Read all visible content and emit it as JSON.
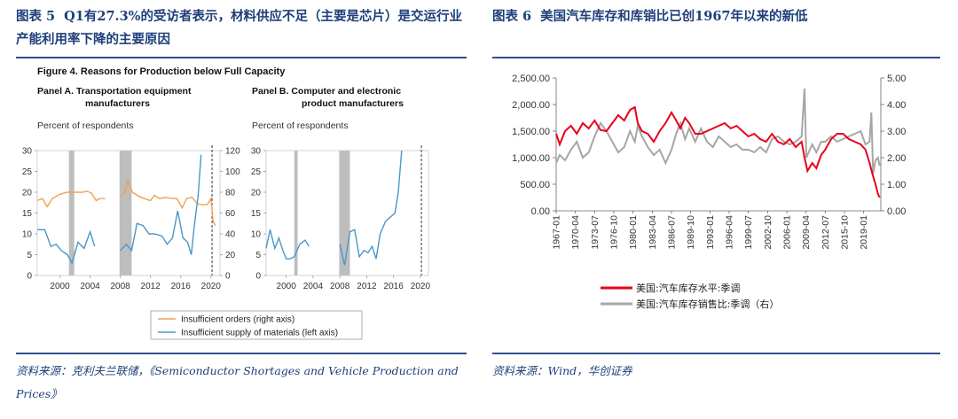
{
  "left": {
    "caption_tag": "图表 5",
    "caption": "Q1有27.3%的受访者表示，材料供应不足（主要是芯片）是交运行业产能利用率下降的主要原因",
    "source": "资料来源：克利夫兰联储，《Semiconductor Shortages and Vehicle Production and Prices》",
    "figure_title": "Figure 4.   Reasons for Production below Full Capacity",
    "panel_a_title": [
      "Panel A.  Transportation equipment",
      "manufacturers"
    ],
    "panel_b_title": [
      "Panel B.  Computer and electronic",
      "product manufacturers"
    ],
    "percent_label": "Percent of respondents",
    "legend": [
      "Insufficient orders (right axis)",
      "Insufficient supply of materials (left axis)"
    ],
    "colors": {
      "orders": "#f0a055",
      "supply": "#4a97c8",
      "recession": "#bdbdbd"
    }
  },
  "right": {
    "caption_tag": "图表 6",
    "caption": "美国汽车库存和库销比已创1967年以来的新低",
    "source": "资料来源：Wind，华创证券",
    "legend": [
      "美国:汽车库存水平:季调",
      "美国:汽车库存销售比:季调（右）"
    ],
    "colors": {
      "inventory": "#e8001c",
      "ratio": "#a6a6a6"
    }
  },
  "chart_data": [
    {
      "type": "line",
      "panel": "Panel A. Transportation equipment manufacturers",
      "ylabel": "Percent of respondents",
      "x_ticks": [
        "2000",
        "2004",
        "2008",
        "2012",
        "2016",
        "2020"
      ],
      "left_ylim": [
        0,
        30
      ],
      "left_ticks": [
        0,
        5,
        10,
        15,
        20,
        25,
        30
      ],
      "right_ylim": [
        0,
        120
      ],
      "right_ticks": [
        0,
        20,
        40,
        60,
        80,
        100,
        120
      ],
      "recession_bands": [
        [
          2001.2,
          2001.9
        ],
        [
          2007.9,
          2009.5
        ]
      ],
      "series": [
        {
          "name": "Insufficient orders (right axis)",
          "axis": "right",
          "segments": [
            [
              [
                1997.0,
                72
              ],
              [
                1997.7,
                74
              ],
              [
                1998.3,
                66
              ],
              [
                1999.0,
                74
              ],
              [
                2000.0,
                78
              ],
              [
                2001.0,
                80
              ],
              [
                2002.0,
                80
              ],
              [
                2003.0,
                80
              ],
              [
                2003.6,
                81
              ],
              [
                2004.2,
                79
              ],
              [
                2004.8,
                72
              ],
              [
                2005.3,
                74
              ],
              [
                2006.0,
                74
              ]
            ],
            [
              [
                2008.0,
                76
              ],
              [
                2008.6,
                80
              ],
              [
                2009.0,
                91
              ],
              [
                2009.6,
                80
              ],
              [
                2010.5,
                76
              ],
              [
                2011.5,
                73
              ],
              [
                2012.0,
                72
              ],
              [
                2012.5,
                77
              ],
              [
                2013.2,
                74
              ],
              [
                2014.0,
                75
              ],
              [
                2015.0,
                74
              ],
              [
                2015.5,
                74
              ],
              [
                2016.2,
                65
              ],
              [
                2016.8,
                74
              ],
              [
                2017.5,
                75
              ],
              [
                2018.2,
                69
              ],
              [
                2018.8,
                68
              ],
              [
                2019.5,
                68
              ],
              [
                2020.0,
                74
              ],
              [
                2020.3,
                52
              ],
              [
                2020.6,
                48
              ]
            ]
          ]
        },
        {
          "name": "Insufficient supply of materials (left axis)",
          "axis": "left",
          "segments": [
            [
              [
                1997.0,
                11
              ],
              [
                1998.0,
                11
              ],
              [
                1998.8,
                7
              ],
              [
                1999.5,
                7.5
              ],
              [
                2000.2,
                6
              ],
              [
                2001.0,
                5
              ],
              [
                2001.6,
                3
              ],
              [
                2002.4,
                8
              ],
              [
                2003.2,
                6.5
              ],
              [
                2004.0,
                10.5
              ],
              [
                2004.6,
                7
              ]
            ],
            [
              [
                2008.0,
                6
              ],
              [
                2008.8,
                7.5
              ],
              [
                2009.5,
                6
              ],
              [
                2010.2,
                12.5
              ],
              [
                2011.0,
                12
              ],
              [
                2011.8,
                10
              ],
              [
                2012.5,
                10
              ],
              [
                2013.5,
                9.5
              ],
              [
                2014.2,
                7.5
              ],
              [
                2014.9,
                9
              ],
              [
                2015.6,
                15.5
              ],
              [
                2016.3,
                9
              ],
              [
                2016.9,
                8
              ],
              [
                2017.4,
                5
              ],
              [
                2017.8,
                12
              ],
              [
                2018.3,
                19
              ],
              [
                2018.7,
                29
              ]
            ]
          ]
        }
      ]
    },
    {
      "type": "line",
      "panel": "Panel B. Computer and electronic product manufacturers",
      "ylabel": "Percent of respondents",
      "x_ticks": [
        "2000",
        "2004",
        "2008",
        "2012",
        "2016",
        "2020"
      ],
      "left_ylim": [
        0,
        30
      ],
      "left_ticks": [
        0,
        5,
        10,
        15,
        20,
        25,
        30
      ],
      "recession_bands": [
        [
          2001.2,
          2001.7
        ],
        [
          2007.9,
          2009.5
        ]
      ],
      "series": [
        {
          "name": "Insufficient supply of materials (left axis)",
          "axis": "left",
          "segments": [
            [
              [
                1997.0,
                6.5
              ],
              [
                1997.6,
                11
              ],
              [
                1998.3,
                6.5
              ],
              [
                1998.9,
                9
              ],
              [
                1999.5,
                6
              ],
              [
                2000.0,
                4
              ],
              [
                2000.6,
                4
              ],
              [
                2001.2,
                4.5
              ],
              [
                2002.0,
                7.5
              ],
              [
                2002.8,
                8.5
              ],
              [
                2003.4,
                7
              ]
            ],
            [
              [
                2008.0,
                7.5
              ],
              [
                2008.7,
                2.5
              ],
              [
                2009.5,
                10.5
              ],
              [
                2010.2,
                11
              ],
              [
                2010.9,
                4.5
              ],
              [
                2011.6,
                6
              ],
              [
                2012.2,
                5.5
              ],
              [
                2012.8,
                7
              ],
              [
                2013.4,
                4
              ],
              [
                2014.0,
                10
              ],
              [
                2014.8,
                13
              ],
              [
                2015.5,
                14
              ],
              [
                2016.2,
                15
              ],
              [
                2016.7,
                20
              ],
              [
                2017.2,
                30
              ]
            ]
          ]
        }
      ]
    },
    {
      "type": "line",
      "title": "美国汽车库存和库销比已创1967年以来的新低",
      "x_ticks": [
        "1967-01",
        "1970-04",
        "1973-07",
        "1976-10",
        "1980-01",
        "1983-04",
        "1986-07",
        "1989-10",
        "1993-01",
        "1996-04",
        "1999-07",
        "2002-10",
        "2006-01",
        "2009-04",
        "2012-07",
        "2015-10",
        "2019-01"
      ],
      "left_ylim": [
        0,
        2500
      ],
      "left_ticks": [
        "0.00",
        "500.00",
        "1,000.00",
        "1,500.00",
        "2,000.00",
        "2,500.00"
      ],
      "right_ylim": [
        0,
        5
      ],
      "right_ticks": [
        "0.00",
        "1.00",
        "2.00",
        "3.00",
        "4.00",
        "5.00"
      ],
      "series": [
        {
          "name": "美国:汽车库存水平:季调",
          "axis": "left",
          "points": [
            [
              1967.0,
              1450
            ],
            [
              1967.6,
              1250
            ],
            [
              1968.5,
              1500
            ],
            [
              1969.5,
              1600
            ],
            [
              1970.5,
              1450
            ],
            [
              1971.5,
              1650
            ],
            [
              1972.5,
              1550
            ],
            [
              1973.5,
              1700
            ],
            [
              1974.5,
              1520
            ],
            [
              1975.5,
              1500
            ],
            [
              1976.5,
              1650
            ],
            [
              1977.5,
              1800
            ],
            [
              1978.5,
              1700
            ],
            [
              1979.5,
              1900
            ],
            [
              1980.3,
              1950
            ],
            [
              1980.8,
              1650
            ],
            [
              1981.5,
              1500
            ],
            [
              1982.5,
              1450
            ],
            [
              1983.5,
              1300
            ],
            [
              1984.5,
              1500
            ],
            [
              1985.5,
              1650
            ],
            [
              1986.5,
              1850
            ],
            [
              1987.3,
              1700
            ],
            [
              1988.0,
              1550
            ],
            [
              1988.8,
              1750
            ],
            [
              1989.5,
              1650
            ],
            [
              1990.5,
              1450
            ],
            [
              1991.5,
              1450
            ],
            [
              1992.5,
              1500
            ],
            [
              1993.5,
              1550
            ],
            [
              1994.5,
              1600
            ],
            [
              1995.5,
              1650
            ],
            [
              1996.5,
              1550
            ],
            [
              1997.5,
              1600
            ],
            [
              1998.5,
              1500
            ],
            [
              1999.5,
              1400
            ],
            [
              2000.5,
              1450
            ],
            [
              2001.5,
              1350
            ],
            [
              2002.5,
              1300
            ],
            [
              2003.5,
              1450
            ],
            [
              2004.5,
              1300
            ],
            [
              2005.5,
              1250
            ],
            [
              2006.5,
              1350
            ],
            [
              2007.5,
              1200
            ],
            [
              2008.5,
              1300
            ],
            [
              2009.0,
              1000
            ],
            [
              2009.5,
              750
            ],
            [
              2010.3,
              900
            ],
            [
              2011.0,
              800
            ],
            [
              2011.8,
              1050
            ],
            [
              2012.5,
              1150
            ],
            [
              2013.5,
              1350
            ],
            [
              2014.5,
              1450
            ],
            [
              2015.5,
              1450
            ],
            [
              2016.5,
              1350
            ],
            [
              2017.5,
              1300
            ],
            [
              2018.5,
              1250
            ],
            [
              2019.3,
              1150
            ],
            [
              2020.0,
              900
            ],
            [
              2020.6,
              650
            ],
            [
              2021.0,
              500
            ],
            [
              2021.4,
              320
            ],
            [
              2021.7,
              250
            ]
          ]
        },
        {
          "name": "美国:汽车库存销售比:季调（右）",
          "axis": "right",
          "points": [
            [
              1967.0,
              1.8
            ],
            [
              1967.6,
              2.1
            ],
            [
              1968.5,
              1.9
            ],
            [
              1969.5,
              2.3
            ],
            [
              1970.5,
              2.6
            ],
            [
              1971.5,
              2.0
            ],
            [
              1972.5,
              2.2
            ],
            [
              1973.5,
              2.8
            ],
            [
              1974.5,
              3.3
            ],
            [
              1975.5,
              3.0
            ],
            [
              1976.5,
              2.6
            ],
            [
              1977.5,
              2.2
            ],
            [
              1978.5,
              2.4
            ],
            [
              1979.5,
              3.0
            ],
            [
              1980.3,
              2.6
            ],
            [
              1980.8,
              3.2
            ],
            [
              1981.5,
              2.8
            ],
            [
              1982.5,
              2.4
            ],
            [
              1983.5,
              2.1
            ],
            [
              1984.5,
              2.3
            ],
            [
              1985.5,
              1.8
            ],
            [
              1986.5,
              2.3
            ],
            [
              1987.3,
              2.9
            ],
            [
              1988.0,
              3.3
            ],
            [
              1988.8,
              2.7
            ],
            [
              1989.5,
              3.1
            ],
            [
              1990.5,
              2.6
            ],
            [
              1991.5,
              3.1
            ],
            [
              1992.5,
              2.6
            ],
            [
              1993.5,
              2.4
            ],
            [
              1994.5,
              2.8
            ],
            [
              1995.5,
              2.6
            ],
            [
              1996.5,
              2.4
            ],
            [
              1997.5,
              2.5
            ],
            [
              1998.5,
              2.3
            ],
            [
              1999.5,
              2.3
            ],
            [
              2000.5,
              2.2
            ],
            [
              2001.5,
              2.4
            ],
            [
              2002.5,
              2.2
            ],
            [
              2003.5,
              2.7
            ],
            [
              2004.5,
              2.8
            ],
            [
              2005.5,
              2.6
            ],
            [
              2006.5,
              2.5
            ],
            [
              2007.5,
              2.6
            ],
            [
              2008.5,
              2.8
            ],
            [
              2009.0,
              4.6
            ],
            [
              2009.3,
              2.0
            ],
            [
              2010.3,
              2.5
            ],
            [
              2011.0,
              2.2
            ],
            [
              2011.8,
              2.6
            ],
            [
              2012.5,
              2.6
            ],
            [
              2013.5,
              2.8
            ],
            [
              2014.5,
              2.6
            ],
            [
              2015.5,
              2.7
            ],
            [
              2016.5,
              2.8
            ],
            [
              2017.5,
              2.9
            ],
            [
              2018.5,
              3.0
            ],
            [
              2019.3,
              2.5
            ],
            [
              2020.0,
              2.6
            ],
            [
              2020.3,
              3.7
            ],
            [
              2020.6,
              1.4
            ],
            [
              2021.0,
              1.9
            ],
            [
              2021.4,
              2.0
            ],
            [
              2021.7,
              1.7
            ]
          ]
        }
      ]
    }
  ]
}
